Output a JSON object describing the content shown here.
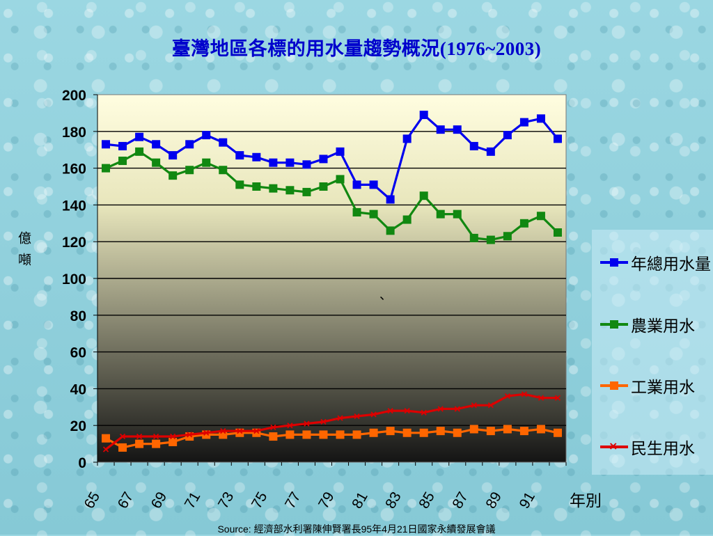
{
  "title": "臺灣地區各標的用水量趨勢概況(1976~2003)",
  "source": "Source: 經濟部水利署陳伸賢署長95年4月21日國家永續發展會議",
  "stray_mark": "、",
  "colors": {
    "background": "#8fd0dc",
    "total": "#0000ee",
    "agri": "#118811",
    "industrial": "#ff6600",
    "domestic": "#dd0000"
  },
  "chart_data": {
    "type": "line",
    "title": "臺灣地區各標的用水量趨勢概況(1976~2003)",
    "xlabel": "年別",
    "ylabel": "億噸",
    "ylim": [
      0,
      200
    ],
    "yticks": [
      0,
      20,
      40,
      60,
      80,
      100,
      120,
      140,
      160,
      180,
      200
    ],
    "x_tick_labels": [
      "65",
      "67",
      "69",
      "71",
      "73",
      "75",
      "77",
      "79",
      "81",
      "83",
      "85",
      "87",
      "89",
      "91"
    ],
    "x": [
      65,
      66,
      67,
      68,
      69,
      70,
      71,
      72,
      73,
      74,
      75,
      76,
      77,
      78,
      79,
      80,
      81,
      82,
      83,
      84,
      85,
      86,
      87,
      88,
      89,
      90,
      91,
      92
    ],
    "grid": "horizontal",
    "legend_position": "right",
    "series": [
      {
        "name": "年總用水量",
        "color": "#0000ee",
        "marker": "square",
        "values": [
          173,
          172,
          177,
          173,
          167,
          173,
          178,
          174,
          167,
          166,
          163,
          163,
          162,
          165,
          169,
          151,
          151,
          143,
          176,
          189,
          181,
          181,
          172,
          169,
          178,
          185,
          187,
          176
        ]
      },
      {
        "name": "農業用水",
        "color": "#118811",
        "marker": "square",
        "values": [
          160,
          164,
          169,
          163,
          156,
          159,
          163,
          159,
          151,
          150,
          149,
          148,
          147,
          150,
          154,
          136,
          135,
          126,
          132,
          145,
          135,
          135,
          122,
          121,
          123,
          130,
          134,
          125
        ]
      },
      {
        "name": "工業用水",
        "color": "#ff6600",
        "marker": "square",
        "values": [
          13,
          8,
          10,
          10,
          11,
          14,
          15,
          15,
          16,
          16,
          14,
          15,
          15,
          15,
          15,
          15,
          16,
          17,
          16,
          16,
          17,
          16,
          18,
          17,
          18,
          17,
          18,
          16
        ]
      },
      {
        "name": "民生用水",
        "color": "#dd0000",
        "marker": "x",
        "values": [
          7,
          14,
          14,
          14,
          14,
          15,
          16,
          17,
          17,
          17,
          19,
          20,
          21,
          22,
          24,
          25,
          26,
          28,
          28,
          27,
          29,
          29,
          31,
          31,
          36,
          37,
          35,
          35
        ]
      }
    ]
  }
}
